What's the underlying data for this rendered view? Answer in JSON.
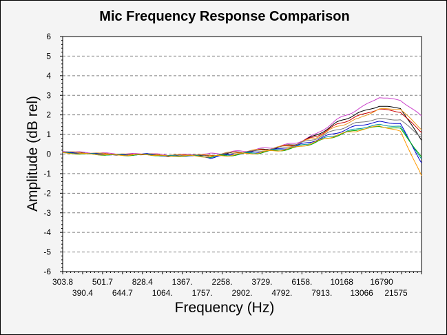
{
  "chart_data": {
    "type": "line",
    "title": "Mic Frequency Response Comparison",
    "xlabel": "Frequency (Hz)",
    "ylabel": "Amplitude (dB rel)",
    "xscale": "log",
    "xlim": [
      303.8,
      21575
    ],
    "ylim": [
      -6,
      6
    ],
    "yticks": [
      "6",
      "5",
      "4",
      "3",
      "2",
      "1",
      "0",
      "-1",
      "-2",
      "-3",
      "-4",
      "-5",
      "-6"
    ],
    "xticks_row1": [
      "303.8",
      "501.7",
      "828.4",
      "1367.",
      "2258.",
      "3729.",
      "6158.",
      "10168",
      "16790"
    ],
    "xticks_row2": [
      "390.4",
      "644.7",
      "1064.",
      "1757.",
      "2902.",
      "4792.",
      "7913.",
      "13066",
      "21575"
    ],
    "grid": "horizontal-dashed",
    "x": [
      303.8,
      390.4,
      501.7,
      644.7,
      828.4,
      1064,
      1367,
      1757,
      2258,
      2902,
      3729,
      4792,
      6158,
      7913,
      10168,
      13066,
      16790,
      21575
    ],
    "series": [
      {
        "color": "#cc44cc",
        "values": [
          0.15,
          0.08,
          0.04,
          0.0,
          0.03,
          -0.05,
          -0.02,
          0.0,
          0.1,
          0.2,
          0.35,
          0.55,
          1.0,
          1.75,
          2.3,
          2.9,
          2.75,
          1.95
        ]
      },
      {
        "color": "#000000",
        "values": [
          0.1,
          0.05,
          0.0,
          -0.05,
          0.0,
          -0.1,
          -0.05,
          -0.1,
          0.05,
          0.15,
          0.3,
          0.5,
          0.95,
          1.6,
          2.1,
          2.45,
          2.35,
          0.7
        ]
      },
      {
        "color": "#cc0000",
        "values": [
          0.1,
          0.05,
          0.02,
          -0.03,
          0.0,
          -0.08,
          -0.04,
          -0.08,
          0.06,
          0.15,
          0.3,
          0.5,
          0.9,
          1.5,
          1.95,
          2.3,
          2.15,
          1.1
        ]
      },
      {
        "color": "#ee9922",
        "values": [
          0.12,
          0.06,
          0.02,
          -0.02,
          0.0,
          -0.07,
          -0.03,
          -0.06,
          0.07,
          0.16,
          0.3,
          0.48,
          0.85,
          1.4,
          1.8,
          2.3,
          2.3,
          1.25
        ]
      },
      {
        "color": "#777777",
        "values": [
          0.1,
          0.04,
          0.0,
          -0.04,
          0.0,
          -0.09,
          -0.05,
          -0.1,
          0.04,
          0.12,
          0.26,
          0.45,
          0.8,
          1.25,
          1.6,
          1.8,
          1.75,
          0.85
        ]
      },
      {
        "color": "#0000cc",
        "values": [
          0.08,
          0.03,
          -0.02,
          -0.05,
          0.0,
          -0.12,
          -0.08,
          -0.18,
          -0.02,
          0.08,
          0.2,
          0.38,
          0.72,
          1.1,
          1.45,
          1.65,
          1.55,
          -0.45
        ]
      },
      {
        "color": "#009999",
        "values": [
          0.06,
          0.02,
          -0.03,
          -0.06,
          -0.02,
          -0.1,
          -0.07,
          -0.15,
          -0.03,
          0.05,
          0.18,
          0.34,
          0.66,
          1.0,
          1.3,
          1.5,
          1.4,
          -0.25
        ]
      },
      {
        "color": "#00aa00",
        "values": [
          0.05,
          0.0,
          -0.04,
          -0.07,
          -0.03,
          -0.12,
          -0.09,
          -0.14,
          -0.05,
          0.03,
          0.15,
          0.3,
          0.6,
          0.95,
          1.25,
          1.4,
          1.3,
          -0.15
        ]
      },
      {
        "color": "#ff9900",
        "values": [
          0.06,
          0.01,
          -0.03,
          -0.06,
          -0.02,
          -0.11,
          -0.08,
          -0.15,
          -0.04,
          0.04,
          0.16,
          0.32,
          0.62,
          0.98,
          1.2,
          1.45,
          1.15,
          -1.1
        ]
      }
    ]
  }
}
